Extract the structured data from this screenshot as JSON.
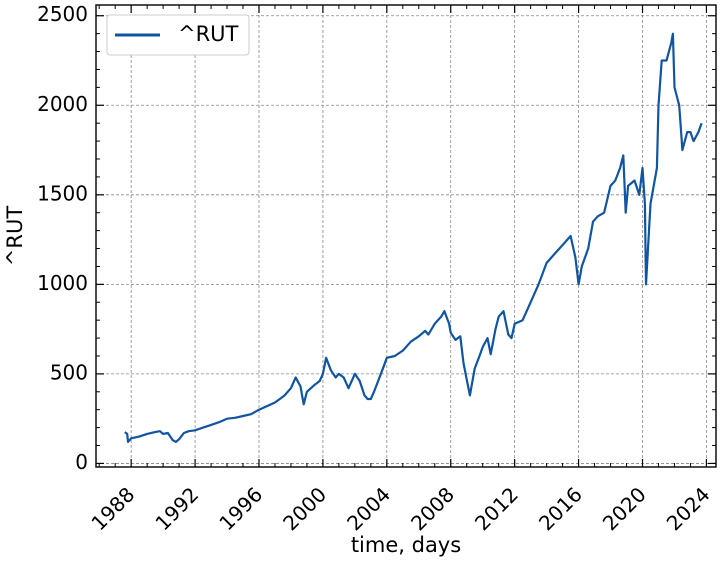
{
  "chart_data": {
    "type": "line",
    "xlabel": "time, days",
    "ylabel": "^RUT",
    "xlim": [
      1985.8,
      2024.6
    ],
    "ylim": [
      -20,
      2560
    ],
    "xticks": [
      1988,
      1992,
      1996,
      2000,
      2004,
      2008,
      2012,
      2016,
      2020,
      2024
    ],
    "xtick_labels": [
      "1988",
      "1992",
      "1996",
      "2000",
      "2004",
      "2008",
      "2012",
      "2016",
      "2020",
      "2024"
    ],
    "yticks": [
      0,
      500,
      1000,
      1500,
      2000,
      2500
    ],
    "ytick_labels": [
      "0",
      "500",
      "1000",
      "1500",
      "2000",
      "2500"
    ],
    "grid": true,
    "legend_position": "upper-left",
    "series": [
      {
        "name": "^RUT",
        "color": "#1155a0",
        "x": [
          1987.6,
          1987.75,
          1987.8,
          1988.0,
          1988.5,
          1989.0,
          1989.5,
          1989.8,
          1990.0,
          1990.3,
          1990.6,
          1990.8,
          1991.0,
          1991.3,
          1991.6,
          1992.0,
          1992.5,
          1993.0,
          1993.5,
          1994.0,
          1994.5,
          1995.0,
          1995.5,
          1996.0,
          1996.5,
          1997.0,
          1997.3,
          1997.6,
          1998.0,
          1998.3,
          1998.6,
          1998.7,
          1998.8,
          1999.0,
          1999.5,
          1999.8,
          2000.0,
          2000.2,
          2000.5,
          2000.8,
          2001.0,
          2001.3,
          2001.6,
          2001.7,
          2002.0,
          2002.3,
          2002.6,
          2002.8,
          2003.0,
          2003.2,
          2003.5,
          2003.8,
          2004.0,
          2004.5,
          2005.0,
          2005.5,
          2006.0,
          2006.4,
          2006.6,
          2007.0,
          2007.4,
          2007.6,
          2007.9,
          2008.0,
          2008.3,
          2008.6,
          2008.8,
          2009.0,
          2009.2,
          2009.5,
          2009.8,
          2010.0,
          2010.3,
          2010.5,
          2010.8,
          2011.0,
          2011.3,
          2011.6,
          2011.8,
          2012.0,
          2012.5,
          2013.0,
          2013.5,
          2014.0,
          2014.5,
          2015.0,
          2015.5,
          2015.8,
          2016.0,
          2016.2,
          2016.6,
          2016.9,
          2017.2,
          2017.6,
          2018.0,
          2018.3,
          2018.6,
          2018.8,
          2018.95,
          2019.1,
          2019.5,
          2019.8,
          2020.0,
          2020.15,
          2020.22,
          2020.5,
          2020.9,
          2021.0,
          2021.2,
          2021.5,
          2021.8,
          2021.9,
          2022.0,
          2022.3,
          2022.5,
          2022.8,
          2023.0,
          2023.2,
          2023.5,
          2023.7
        ],
        "values": [
          175,
          165,
          120,
          140,
          150,
          165,
          175,
          180,
          165,
          170,
          130,
          120,
          135,
          170,
          180,
          185,
          200,
          215,
          230,
          250,
          255,
          265,
          275,
          300,
          320,
          340,
          360,
          380,
          420,
          480,
          430,
          380,
          330,
          400,
          440,
          460,
          500,
          590,
          520,
          480,
          500,
          480,
          420,
          440,
          500,
          460,
          380,
          360,
          360,
          400,
          470,
          540,
          590,
          600,
          630,
          680,
          710,
          740,
          720,
          780,
          820,
          850,
          780,
          730,
          690,
          710,
          560,
          470,
          380,
          530,
          600,
          650,
          700,
          610,
          750,
          820,
          850,
          720,
          700,
          780,
          800,
          900,
          1000,
          1120,
          1170,
          1220,
          1270,
          1150,
          1000,
          1100,
          1200,
          1350,
          1380,
          1400,
          1550,
          1580,
          1650,
          1720,
          1400,
          1550,
          1580,
          1500,
          1650,
          1450,
          1000,
          1450,
          1650,
          2000,
          2250,
          2250,
          2350,
          2400,
          2100,
          2000,
          1750,
          1850,
          1850,
          1800,
          1850,
          1900
        ]
      }
    ]
  }
}
